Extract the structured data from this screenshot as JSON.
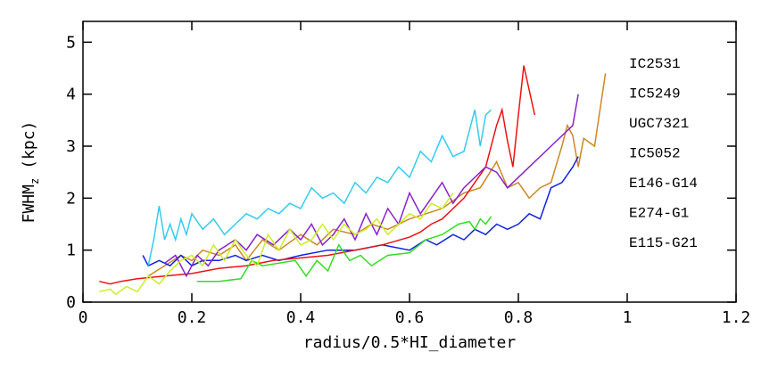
{
  "chart_data": {
    "type": "line",
    "xlabel": "radius/0.5*HI_diameter",
    "ylabel": [
      "FWHM",
      "z",
      "(kpc)"
    ],
    "xlim": [
      0,
      1.2
    ],
    "ylim": [
      0,
      5.4
    ],
    "xticks": [
      0,
      0.2,
      0.4,
      0.6,
      0.8,
      1,
      1.2
    ],
    "yticks": [
      0,
      1,
      2,
      3,
      4,
      5
    ],
    "series": [
      {
        "name": "IC2531",
        "color": "#cc8822",
        "x": [
          0.12,
          0.15,
          0.18,
          0.2,
          0.22,
          0.25,
          0.28,
          0.3,
          0.33,
          0.36,
          0.4,
          0.43,
          0.46,
          0.5,
          0.53,
          0.56,
          0.6,
          0.63,
          0.66,
          0.7,
          0.73,
          0.76,
          0.78,
          0.8,
          0.82,
          0.84,
          0.86,
          0.88,
          0.89,
          0.9,
          0.91,
          0.92,
          0.94,
          0.96
        ],
        "values": [
          0.5,
          0.7,
          0.9,
          0.8,
          1.0,
          0.9,
          1.1,
          0.8,
          1.2,
          1.0,
          1.3,
          1.1,
          1.4,
          1.3,
          1.5,
          1.4,
          1.6,
          1.7,
          1.8,
          2.1,
          2.2,
          2.7,
          2.2,
          2.3,
          2.0,
          2.2,
          2.3,
          3.0,
          3.4,
          3.2,
          2.6,
          3.15,
          3.0,
          4.4
        ]
      },
      {
        "name": "IC5249",
        "color": "#1122dd",
        "x": [
          0.11,
          0.12,
          0.14,
          0.16,
          0.18,
          0.2,
          0.22,
          0.25,
          0.28,
          0.3,
          0.33,
          0.36,
          0.4,
          0.45,
          0.5,
          0.55,
          0.6,
          0.63,
          0.65,
          0.68,
          0.7,
          0.72,
          0.74,
          0.76,
          0.78,
          0.8,
          0.82,
          0.84,
          0.86,
          0.88,
          0.9,
          0.91
        ],
        "values": [
          0.9,
          0.7,
          0.8,
          0.7,
          0.9,
          0.7,
          0.8,
          0.8,
          0.9,
          0.8,
          0.9,
          0.8,
          0.9,
          1.0,
          1.0,
          1.1,
          1.0,
          1.2,
          1.1,
          1.3,
          1.2,
          1.4,
          1.3,
          1.5,
          1.4,
          1.5,
          1.7,
          1.6,
          2.2,
          2.3,
          2.6,
          2.8
        ]
      },
      {
        "name": "UGC7321",
        "color": "#ee1111",
        "x": [
          0.03,
          0.05,
          0.07,
          0.1,
          0.15,
          0.2,
          0.25,
          0.3,
          0.35,
          0.4,
          0.45,
          0.5,
          0.55,
          0.6,
          0.62,
          0.64,
          0.66,
          0.68,
          0.7,
          0.72,
          0.74,
          0.76,
          0.77,
          0.78,
          0.79,
          0.8,
          0.81,
          0.83
        ],
        "values": [
          0.4,
          0.35,
          0.4,
          0.45,
          0.5,
          0.55,
          0.65,
          0.7,
          0.8,
          0.85,
          0.9,
          1.0,
          1.1,
          1.25,
          1.35,
          1.5,
          1.6,
          1.8,
          2.0,
          2.3,
          2.6,
          3.4,
          3.7,
          3.1,
          2.6,
          3.6,
          4.55,
          3.6
        ]
      },
      {
        "name": "IC5052",
        "color": "#8822cc",
        "x": [
          0.15,
          0.17,
          0.19,
          0.21,
          0.23,
          0.25,
          0.28,
          0.3,
          0.32,
          0.35,
          0.38,
          0.4,
          0.42,
          0.44,
          0.46,
          0.48,
          0.5,
          0.52,
          0.54,
          0.56,
          0.58,
          0.6,
          0.62,
          0.64,
          0.66,
          0.68,
          0.7,
          0.72,
          0.74,
          0.76,
          0.78,
          0.82,
          0.86,
          0.9,
          0.91
        ],
        "values": [
          0.75,
          0.9,
          0.5,
          0.9,
          0.7,
          1.0,
          1.2,
          1.0,
          1.3,
          1.1,
          1.4,
          1.2,
          1.5,
          1.1,
          1.3,
          1.6,
          1.2,
          1.7,
          1.3,
          1.8,
          1.5,
          2.1,
          1.7,
          2.0,
          2.3,
          1.9,
          2.2,
          2.4,
          2.6,
          2.5,
          2.2,
          2.6,
          3.0,
          3.4,
          4.0
        ]
      },
      {
        "name": "E146-G14",
        "color": "#33dd22",
        "x": [
          0.21,
          0.25,
          0.29,
          0.31,
          0.33,
          0.36,
          0.39,
          0.41,
          0.43,
          0.45,
          0.47,
          0.49,
          0.51,
          0.53,
          0.56,
          0.6,
          0.63,
          0.66,
          0.69,
          0.71,
          0.72,
          0.73,
          0.74,
          0.75
        ],
        "values": [
          0.4,
          0.4,
          0.45,
          0.8,
          0.7,
          0.75,
          0.8,
          0.5,
          0.8,
          0.6,
          1.1,
          0.8,
          0.9,
          0.7,
          0.9,
          0.95,
          1.2,
          1.3,
          1.5,
          1.55,
          1.4,
          1.6,
          1.5,
          1.65
        ]
      },
      {
        "name": "E274-G1",
        "color": "#ccee22",
        "x": [
          0.03,
          0.05,
          0.06,
          0.08,
          0.1,
          0.12,
          0.14,
          0.16,
          0.18,
          0.2,
          0.22,
          0.24,
          0.26,
          0.28,
          0.3,
          0.32,
          0.34,
          0.36,
          0.38,
          0.4,
          0.42,
          0.44,
          0.46,
          0.48,
          0.5,
          0.52,
          0.54,
          0.56,
          0.58,
          0.6,
          0.62,
          0.64,
          0.66,
          0.68
        ],
        "values": [
          0.2,
          0.25,
          0.15,
          0.3,
          0.2,
          0.5,
          0.35,
          0.6,
          0.8,
          0.9,
          0.7,
          1.1,
          0.8,
          1.2,
          0.9,
          0.7,
          1.3,
          1.0,
          1.4,
          1.1,
          1.2,
          1.5,
          1.2,
          1.5,
          1.3,
          1.4,
          1.6,
          1.3,
          1.5,
          1.7,
          1.6,
          1.9,
          1.8,
          2.1
        ]
      },
      {
        "name": "E115-G21",
        "color": "#33ccee",
        "x": [
          0.12,
          0.13,
          0.14,
          0.15,
          0.16,
          0.17,
          0.18,
          0.19,
          0.2,
          0.22,
          0.24,
          0.26,
          0.28,
          0.3,
          0.32,
          0.34,
          0.36,
          0.38,
          0.4,
          0.42,
          0.44,
          0.46,
          0.48,
          0.5,
          0.52,
          0.54,
          0.56,
          0.58,
          0.6,
          0.62,
          0.64,
          0.66,
          0.68,
          0.7,
          0.72,
          0.73,
          0.74,
          0.75
        ],
        "values": [
          0.7,
          1.2,
          1.85,
          1.2,
          1.5,
          1.2,
          1.6,
          1.3,
          1.7,
          1.4,
          1.6,
          1.3,
          1.5,
          1.7,
          1.6,
          1.8,
          1.7,
          1.9,
          1.8,
          2.2,
          2.0,
          2.1,
          1.9,
          2.3,
          2.1,
          2.4,
          2.3,
          2.6,
          2.4,
          2.9,
          2.7,
          3.2,
          2.8,
          2.9,
          3.7,
          3.0,
          3.6,
          3.7
        ]
      }
    ]
  }
}
